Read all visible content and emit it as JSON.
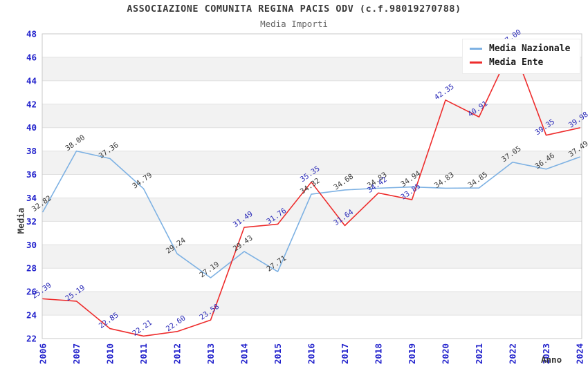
{
  "title": "ASSOCIAZIONE COMUNITA REGINA PACIS ODV (c.f.98019270788)",
  "subtitle": "Media Importi",
  "chart_data": {
    "type": "line",
    "title": "ASSOCIAZIONE COMUNITA REGINA PACIS ODV (c.f.98019270788)",
    "subtitle": "Media Importi",
    "xlabel": "Anno",
    "ylabel": "Media",
    "x": [
      "2006",
      "2007",
      "2010",
      "2011",
      "2012",
      "2013",
      "2014",
      "2015",
      "2016",
      "2017",
      "2018",
      "2019",
      "2020",
      "2021",
      "2022",
      "2023",
      "2024"
    ],
    "series": [
      {
        "name": "Media Nazionale",
        "color": "#7db1e3",
        "label_color": "#3a3a3a",
        "values": [
          32.82,
          38.0,
          37.36,
          34.79,
          29.24,
          27.19,
          29.43,
          27.71,
          34.32,
          34.68,
          34.83,
          34.94,
          34.83,
          34.85,
          37.05,
          36.46,
          37.49
        ]
      },
      {
        "name": "Media Ente",
        "color": "#ee2c2c",
        "label_color": "#2a2ab8",
        "values": [
          25.39,
          25.19,
          22.85,
          22.21,
          22.6,
          23.58,
          31.49,
          31.76,
          35.35,
          31.64,
          34.42,
          33.85,
          42.35,
          40.91,
          47.0,
          39.35,
          39.98
        ]
      }
    ],
    "ylim": [
      22,
      48
    ],
    "yticks": [
      22,
      24,
      26,
      28,
      30,
      32,
      34,
      36,
      38,
      40,
      42,
      44,
      46,
      48
    ],
    "grid": true,
    "legend_position": "top-right",
    "value_label_decimals": 2
  },
  "colors": {
    "tick_label": "#2222cc",
    "band": "#f2f2f2",
    "gridline": "#e0e0e0",
    "plot_border": "#c9c9c9",
    "title": "#3a3a3a",
    "subtitle": "#666666",
    "axis_title": "#333333"
  }
}
